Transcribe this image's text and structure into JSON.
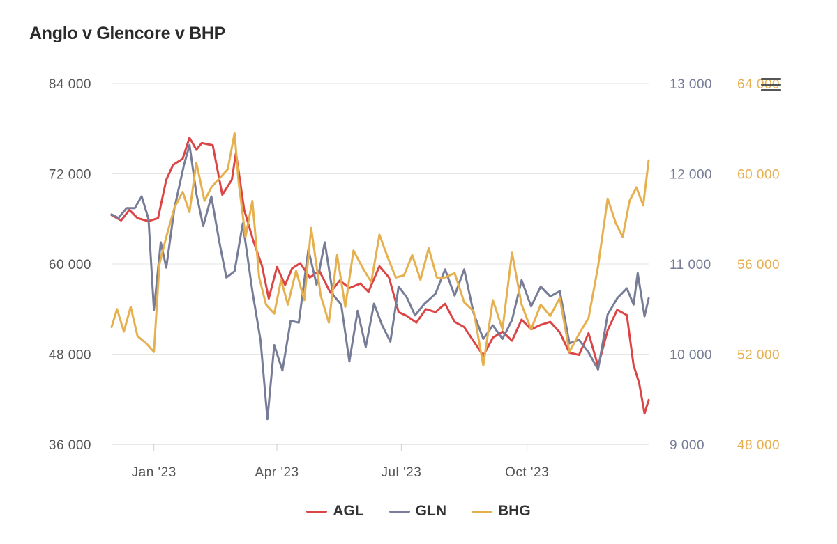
{
  "header": {
    "title": "Anglo v Glencore v BHP"
  },
  "chart_data": {
    "type": "line",
    "title": "Anglo v Glencore v BHP",
    "x_range": [
      "2022-12-01",
      "2023-12-29"
    ],
    "x_ticks": [
      {
        "date": "2023-01-01",
        "label": "Jan '23"
      },
      {
        "date": "2023-04-01",
        "label": "Apr '23"
      },
      {
        "date": "2023-07-01",
        "label": "Jul '23"
      },
      {
        "date": "2023-10-01",
        "label": "Oct '23"
      }
    ],
    "axes": [
      {
        "id": "left",
        "side": "left",
        "range": [
          36000,
          84000
        ],
        "ticks": [
          84000,
          72000,
          60000,
          48000,
          36000
        ],
        "tick_labels": [
          "84 000",
          "72 000",
          "60 000",
          "48 000",
          "36 000"
        ],
        "color": "#555555"
      },
      {
        "id": "right1",
        "side": "right",
        "range": [
          9000,
          13000
        ],
        "ticks": [
          13000,
          12000,
          11000,
          10000,
          9000
        ],
        "tick_labels": [
          "13 000",
          "12 000",
          "11 000",
          "10 000",
          "9 000"
        ],
        "color": "#777c97"
      },
      {
        "id": "right2",
        "side": "right",
        "range": [
          48000,
          64000
        ],
        "ticks": [
          64000,
          60000,
          56000,
          52000,
          48000
        ],
        "tick_labels": [
          "64 000",
          "60 000",
          "56 000",
          "52 000",
          "48 000"
        ],
        "color": "#e6b04f"
      }
    ],
    "grid": true,
    "legend_position": "bottom",
    "series": [
      {
        "name": "AGL",
        "axis": "left",
        "color": "#dc4545",
        "points": [
          [
            "2022-12-01",
            66500
          ],
          [
            "2022-12-08",
            65800
          ],
          [
            "2022-12-14",
            67200
          ],
          [
            "2022-12-20",
            66100
          ],
          [
            "2022-12-28",
            65700
          ],
          [
            "2023-01-04",
            66100
          ],
          [
            "2023-01-10",
            71200
          ],
          [
            "2023-01-15",
            73200
          ],
          [
            "2023-01-22",
            74000
          ],
          [
            "2023-01-27",
            76800
          ],
          [
            "2023-02-01",
            75200
          ],
          [
            "2023-02-05",
            76100
          ],
          [
            "2023-02-13",
            75800
          ],
          [
            "2023-02-20",
            69200
          ],
          [
            "2023-02-27",
            71200
          ],
          [
            "2023-03-02",
            74800
          ],
          [
            "2023-03-08",
            67200
          ],
          [
            "2023-03-15",
            62900
          ],
          [
            "2023-03-21",
            59800
          ],
          [
            "2023-03-26",
            55400
          ],
          [
            "2023-04-01",
            59600
          ],
          [
            "2023-04-07",
            57200
          ],
          [
            "2023-04-12",
            59400
          ],
          [
            "2023-04-18",
            60100
          ],
          [
            "2023-04-25",
            58200
          ],
          [
            "2023-05-02",
            59100
          ],
          [
            "2023-05-10",
            56200
          ],
          [
            "2023-05-17",
            57800
          ],
          [
            "2023-05-24",
            56800
          ],
          [
            "2023-06-01",
            57400
          ],
          [
            "2023-06-07",
            56300
          ],
          [
            "2023-06-15",
            59700
          ],
          [
            "2023-06-22",
            58200
          ],
          [
            "2023-06-29",
            53600
          ],
          [
            "2023-07-05",
            53100
          ],
          [
            "2023-07-12",
            52200
          ],
          [
            "2023-07-19",
            54000
          ],
          [
            "2023-07-26",
            53600
          ],
          [
            "2023-08-02",
            54700
          ],
          [
            "2023-08-09",
            52300
          ],
          [
            "2023-08-16",
            51600
          ],
          [
            "2023-08-23",
            49700
          ],
          [
            "2023-08-30",
            47800
          ],
          [
            "2023-09-06",
            50200
          ],
          [
            "2023-09-13",
            51000
          ],
          [
            "2023-09-20",
            49800
          ],
          [
            "2023-09-27",
            52600
          ],
          [
            "2023-10-04",
            51300
          ],
          [
            "2023-10-11",
            51900
          ],
          [
            "2023-10-18",
            52300
          ],
          [
            "2023-10-25",
            50900
          ],
          [
            "2023-11-01",
            48200
          ],
          [
            "2023-11-08",
            47900
          ],
          [
            "2023-11-15",
            50800
          ],
          [
            "2023-11-22",
            46400
          ],
          [
            "2023-11-29",
            51200
          ],
          [
            "2023-12-06",
            53900
          ],
          [
            "2023-12-13",
            53200
          ],
          [
            "2023-12-18",
            46500
          ],
          [
            "2023-12-22",
            44200
          ],
          [
            "2023-12-26",
            40100
          ],
          [
            "2023-12-29",
            41900
          ]
        ]
      },
      {
        "name": "GLN",
        "axis": "right1",
        "color": "#777c97",
        "points": [
          [
            "2022-12-01",
            11550
          ],
          [
            "2022-12-06",
            11510
          ],
          [
            "2022-12-12",
            11620
          ],
          [
            "2022-12-18",
            11620
          ],
          [
            "2022-12-23",
            11750
          ],
          [
            "2022-12-28",
            11500
          ],
          [
            "2023-01-01",
            10490
          ],
          [
            "2023-01-06",
            11240
          ],
          [
            "2023-01-10",
            10960
          ],
          [
            "2023-01-16",
            11620
          ],
          [
            "2023-01-23",
            12100
          ],
          [
            "2023-01-27",
            12320
          ],
          [
            "2023-02-01",
            11780
          ],
          [
            "2023-02-06",
            11420
          ],
          [
            "2023-02-12",
            11750
          ],
          [
            "2023-02-18",
            11230
          ],
          [
            "2023-02-23",
            10850
          ],
          [
            "2023-03-01",
            10920
          ],
          [
            "2023-03-07",
            11450
          ],
          [
            "2023-03-14",
            10700
          ],
          [
            "2023-03-20",
            10150
          ],
          [
            "2023-03-25",
            9280
          ],
          [
            "2023-03-30",
            10100
          ],
          [
            "2023-04-05",
            9820
          ],
          [
            "2023-04-11",
            10370
          ],
          [
            "2023-04-17",
            10350
          ],
          [
            "2023-04-24",
            11160
          ],
          [
            "2023-04-30",
            10770
          ],
          [
            "2023-05-06",
            11240
          ],
          [
            "2023-05-12",
            10660
          ],
          [
            "2023-05-18",
            10550
          ],
          [
            "2023-05-24",
            9920
          ],
          [
            "2023-05-30",
            10480
          ],
          [
            "2023-06-05",
            10080
          ],
          [
            "2023-06-11",
            10560
          ],
          [
            "2023-06-17",
            10320
          ],
          [
            "2023-06-23",
            10140
          ],
          [
            "2023-06-29",
            10750
          ],
          [
            "2023-07-05",
            10630
          ],
          [
            "2023-07-11",
            10430
          ],
          [
            "2023-07-18",
            10560
          ],
          [
            "2023-07-26",
            10670
          ],
          [
            "2023-08-02",
            10940
          ],
          [
            "2023-08-09",
            10650
          ],
          [
            "2023-08-16",
            10940
          ],
          [
            "2023-08-23",
            10450
          ],
          [
            "2023-08-30",
            10170
          ],
          [
            "2023-09-06",
            10320
          ],
          [
            "2023-09-13",
            10170
          ],
          [
            "2023-09-20",
            10380
          ],
          [
            "2023-09-27",
            10820
          ],
          [
            "2023-10-04",
            10530
          ],
          [
            "2023-10-11",
            10750
          ],
          [
            "2023-10-18",
            10640
          ],
          [
            "2023-10-25",
            10700
          ],
          [
            "2023-11-01",
            10120
          ],
          [
            "2023-11-08",
            10160
          ],
          [
            "2023-11-15",
            10020
          ],
          [
            "2023-11-22",
            9830
          ],
          [
            "2023-11-29",
            10440
          ],
          [
            "2023-12-06",
            10620
          ],
          [
            "2023-12-13",
            10730
          ],
          [
            "2023-12-18",
            10550
          ],
          [
            "2023-12-21",
            10900
          ],
          [
            "2023-12-26",
            10420
          ],
          [
            "2023-12-29",
            10620
          ]
        ]
      },
      {
        "name": "BHG",
        "axis": "right2",
        "color": "#e6b04f",
        "points": [
          [
            "2022-12-01",
            53200
          ],
          [
            "2022-12-05",
            54000
          ],
          [
            "2022-12-10",
            53000
          ],
          [
            "2022-12-15",
            54100
          ],
          [
            "2022-12-20",
            52800
          ],
          [
            "2022-12-26",
            52500
          ],
          [
            "2023-01-01",
            52100
          ],
          [
            "2023-01-05",
            56000
          ],
          [
            "2023-01-10",
            57200
          ],
          [
            "2023-01-16",
            58500
          ],
          [
            "2023-01-22",
            59200
          ],
          [
            "2023-01-27",
            58300
          ],
          [
            "2023-02-01",
            60500
          ],
          [
            "2023-02-07",
            58800
          ],
          [
            "2023-02-12",
            59400
          ],
          [
            "2023-02-18",
            59800
          ],
          [
            "2023-02-24",
            60200
          ],
          [
            "2023-03-01",
            61800
          ],
          [
            "2023-03-04",
            59600
          ],
          [
            "2023-03-09",
            57200
          ],
          [
            "2023-03-14",
            58800
          ],
          [
            "2023-03-19",
            55400
          ],
          [
            "2023-03-24",
            54200
          ],
          [
            "2023-03-30",
            53800
          ],
          [
            "2023-04-04",
            55300
          ],
          [
            "2023-04-09",
            54200
          ],
          [
            "2023-04-15",
            55700
          ],
          [
            "2023-04-21",
            54400
          ],
          [
            "2023-04-26",
            57600
          ],
          [
            "2023-05-03",
            54600
          ],
          [
            "2023-05-09",
            53400
          ],
          [
            "2023-05-15",
            56400
          ],
          [
            "2023-05-21",
            54100
          ],
          [
            "2023-05-27",
            56600
          ],
          [
            "2023-06-03",
            55800
          ],
          [
            "2023-06-09",
            55200
          ],
          [
            "2023-06-15",
            57300
          ],
          [
            "2023-06-21",
            56300
          ],
          [
            "2023-06-27",
            55400
          ],
          [
            "2023-07-03",
            55500
          ],
          [
            "2023-07-09",
            56400
          ],
          [
            "2023-07-15",
            55300
          ],
          [
            "2023-07-21",
            56700
          ],
          [
            "2023-07-27",
            55400
          ],
          [
            "2023-08-02",
            55400
          ],
          [
            "2023-08-09",
            55600
          ],
          [
            "2023-08-16",
            54300
          ],
          [
            "2023-08-23",
            53900
          ],
          [
            "2023-08-30",
            51500
          ],
          [
            "2023-09-06",
            54400
          ],
          [
            "2023-09-13",
            53100
          ],
          [
            "2023-09-20",
            56500
          ],
          [
            "2023-09-27",
            54200
          ],
          [
            "2023-10-04",
            53100
          ],
          [
            "2023-10-11",
            54200
          ],
          [
            "2023-10-18",
            53700
          ],
          [
            "2023-10-25",
            54500
          ],
          [
            "2023-11-01",
            52100
          ],
          [
            "2023-11-08",
            52900
          ],
          [
            "2023-11-15",
            53600
          ],
          [
            "2023-11-22",
            55900
          ],
          [
            "2023-11-29",
            58900
          ],
          [
            "2023-12-05",
            57800
          ],
          [
            "2023-12-10",
            57200
          ],
          [
            "2023-12-15",
            58800
          ],
          [
            "2023-12-20",
            59400
          ],
          [
            "2023-12-25",
            58600
          ],
          [
            "2023-12-29",
            60600
          ]
        ]
      }
    ]
  },
  "legend": {
    "items": [
      "AGL",
      "GLN",
      "BHG"
    ]
  },
  "menu": {
    "icon": "hamburger-menu-icon"
  }
}
